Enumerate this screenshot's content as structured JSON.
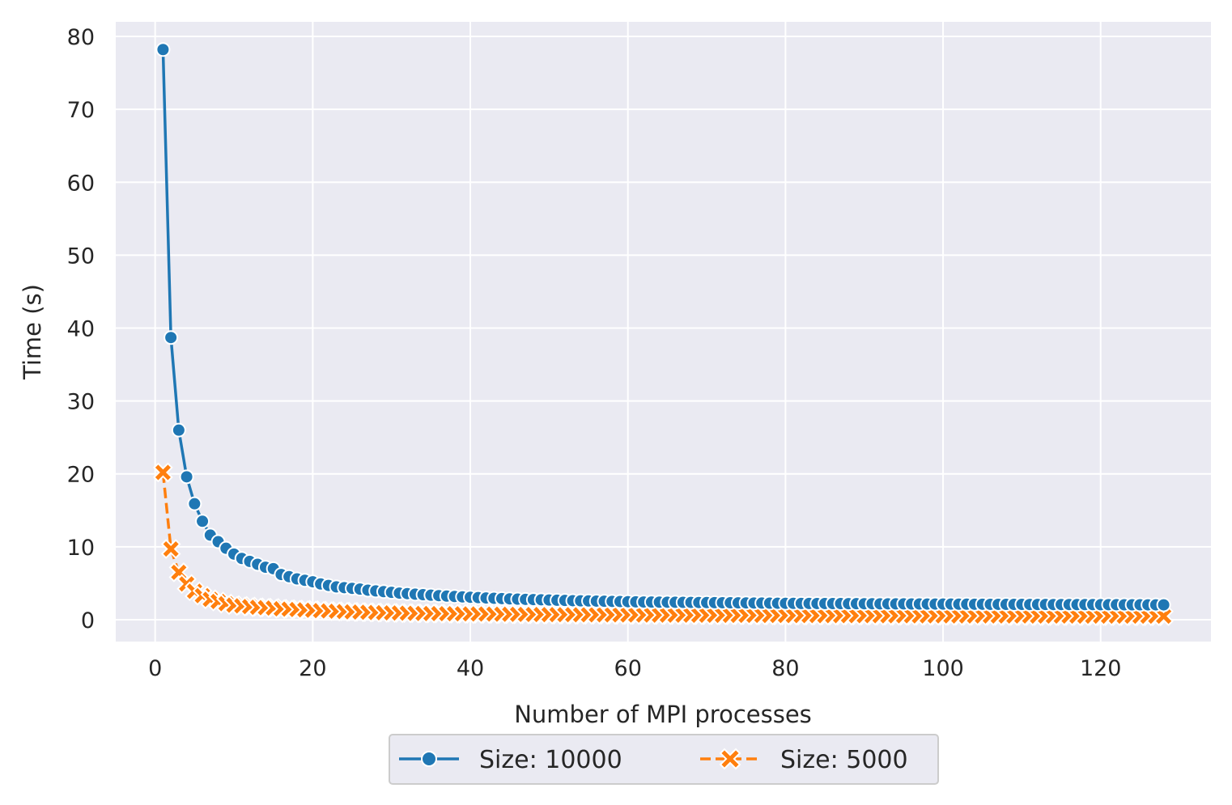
{
  "chart_data": {
    "type": "line",
    "title": "",
    "xlabel": "Number of MPI processes",
    "ylabel": "Time (s)",
    "xlim": [
      -5,
      134
    ],
    "ylim": [
      -3,
      82
    ],
    "xticks": [
      0,
      20,
      40,
      60,
      80,
      100,
      120
    ],
    "yticks": [
      0,
      10,
      20,
      30,
      40,
      50,
      60,
      70,
      80
    ],
    "grid": true,
    "legend": {
      "position": "bottom-center-outside",
      "columns": 2
    },
    "x": [
      1,
      2,
      3,
      4,
      5,
      6,
      7,
      8,
      9,
      10,
      11,
      12,
      13,
      14,
      15,
      16,
      17,
      18,
      19,
      20,
      21,
      22,
      23,
      24,
      25,
      26,
      27,
      28,
      29,
      30,
      31,
      32,
      33,
      34,
      35,
      36,
      37,
      38,
      39,
      40,
      41,
      42,
      43,
      44,
      45,
      46,
      47,
      48,
      49,
      50,
      51,
      52,
      53,
      54,
      55,
      56,
      57,
      58,
      59,
      60,
      61,
      62,
      63,
      64,
      65,
      66,
      67,
      68,
      69,
      70,
      71,
      72,
      73,
      74,
      75,
      76,
      77,
      78,
      79,
      80,
      81,
      82,
      83,
      84,
      85,
      86,
      87,
      88,
      89,
      90,
      91,
      92,
      93,
      94,
      95,
      96,
      97,
      98,
      99,
      100,
      101,
      102,
      103,
      104,
      105,
      106,
      107,
      108,
      109,
      110,
      111,
      112,
      113,
      114,
      115,
      116,
      117,
      118,
      119,
      120,
      121,
      122,
      123,
      124,
      125,
      126,
      127,
      128
    ],
    "series": [
      {
        "name": "Size: 10000",
        "color": "#1f77b4",
        "marker": "circle",
        "linestyle": "solid",
        "values": [
          78.2,
          38.7,
          26.0,
          19.6,
          15.9,
          13.5,
          11.6,
          10.7,
          9.8,
          9.0,
          8.4,
          8.0,
          7.6,
          7.2,
          7.0,
          6.2,
          5.9,
          5.6,
          5.4,
          5.2,
          4.9,
          4.7,
          4.5,
          4.4,
          4.3,
          4.2,
          4.05,
          3.95,
          3.85,
          3.75,
          3.65,
          3.58,
          3.5,
          3.43,
          3.36,
          3.3,
          3.24,
          3.18,
          3.13,
          3.08,
          3.03,
          2.98,
          2.94,
          2.9,
          2.86,
          2.82,
          2.79,
          2.76,
          2.73,
          2.7,
          2.67,
          2.64,
          2.61,
          2.59,
          2.57,
          2.55,
          2.53,
          2.51,
          2.49,
          2.47,
          2.45,
          2.43,
          2.42,
          2.41,
          2.4,
          2.39,
          2.38,
          2.37,
          2.36,
          2.35,
          2.34,
          2.33,
          2.32,
          2.31,
          2.3,
          2.29,
          2.28,
          2.27,
          2.26,
          2.25,
          2.24,
          2.23,
          2.23,
          2.22,
          2.22,
          2.21,
          2.21,
          2.2,
          2.2,
          2.19,
          2.19,
          2.18,
          2.18,
          2.17,
          2.17,
          2.16,
          2.16,
          2.15,
          2.15,
          2.14,
          2.14,
          2.13,
          2.13,
          2.12,
          2.12,
          2.11,
          2.11,
          2.1,
          2.1,
          2.1,
          2.09,
          2.09,
          2.09,
          2.08,
          2.08,
          2.08,
          2.07,
          2.07,
          2.07,
          2.06,
          2.06,
          2.06,
          2.05,
          2.05,
          2.05,
          2.04,
          2.04,
          2.04
        ]
      },
      {
        "name": "Size: 5000",
        "color": "#ff7f0e",
        "marker": "x",
        "linestyle": "dashed",
        "values": [
          20.2,
          9.7,
          6.5,
          4.9,
          3.9,
          3.3,
          2.8,
          2.5,
          2.2,
          2.0,
          1.9,
          1.8,
          1.7,
          1.65,
          1.6,
          1.5,
          1.45,
          1.4,
          1.35,
          1.3,
          1.25,
          1.2,
          1.16,
          1.12,
          1.08,
          1.05,
          1.02,
          0.99,
          0.96,
          0.94,
          0.92,
          0.9,
          0.88,
          0.86,
          0.85,
          0.84,
          0.83,
          0.82,
          0.81,
          0.8,
          0.79,
          0.78,
          0.77,
          0.76,
          0.75,
          0.74,
          0.73,
          0.72,
          0.71,
          0.7,
          0.7,
          0.69,
          0.69,
          0.68,
          0.68,
          0.67,
          0.67,
          0.66,
          0.66,
          0.65,
          0.65,
          0.64,
          0.64,
          0.63,
          0.63,
          0.62,
          0.62,
          0.62,
          0.61,
          0.61,
          0.61,
          0.6,
          0.6,
          0.6,
          0.59,
          0.59,
          0.59,
          0.58,
          0.58,
          0.58,
          0.57,
          0.57,
          0.57,
          0.57,
          0.56,
          0.56,
          0.56,
          0.56,
          0.55,
          0.55,
          0.55,
          0.55,
          0.54,
          0.54,
          0.54,
          0.54,
          0.53,
          0.53,
          0.53,
          0.53,
          0.53,
          0.52,
          0.52,
          0.52,
          0.52,
          0.52,
          0.51,
          0.51,
          0.51,
          0.51,
          0.51,
          0.5,
          0.5,
          0.5,
          0.5,
          0.5,
          0.5,
          0.49,
          0.49,
          0.49,
          0.49,
          0.49,
          0.49,
          0.48,
          0.48,
          0.48,
          0.48,
          0.48
        ]
      }
    ]
  }
}
